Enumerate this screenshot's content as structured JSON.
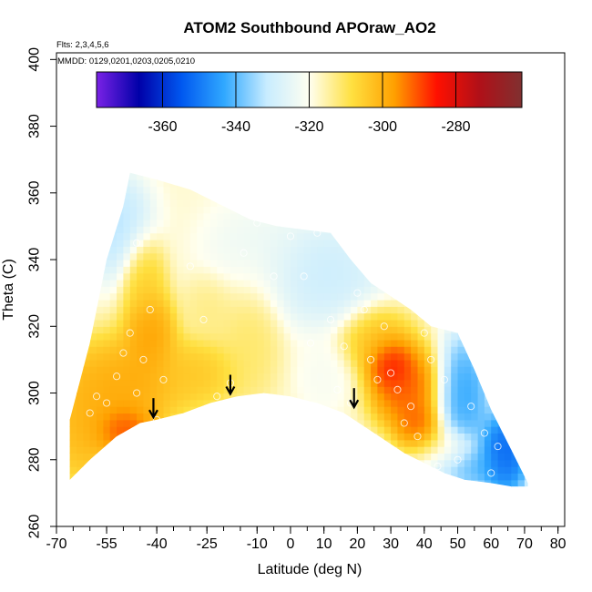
{
  "title": "ATOM2 Southbound APOraw_AO2",
  "flights_note": "Flts: 2,3,4,5,6",
  "dates_note": "MMDD: 0129,0201,0203,0205,0210",
  "chart_data": {
    "type": "heatmap",
    "title": "ATOM2 Southbound APOraw_AO2",
    "xlabel": "Latitude (deg N)",
    "ylabel": "Theta (C)",
    "xlim": [
      -70,
      82
    ],
    "ylim": [
      260,
      402
    ],
    "x_ticks_major": [
      -70,
      -55,
      -40,
      -25,
      -10,
      0,
      10,
      20,
      30,
      40,
      50,
      60,
      70,
      80
    ],
    "x_ticks_labels": [
      "-70",
      "-55",
      "-40",
      "-25",
      "-10",
      "0",
      "10",
      "20",
      "30",
      "40",
      "50",
      "60",
      "70",
      "80"
    ],
    "y_ticks": [
      260,
      280,
      300,
      320,
      340,
      360,
      380,
      400
    ],
    "y_ticks_labels": [
      "260",
      "280",
      "300",
      "320",
      "340",
      "360",
      "380",
      "400"
    ],
    "colorbar": {
      "range": [
        -378,
        -262
      ],
      "ticks": [
        -360,
        -340,
        -320,
        -300,
        -280
      ],
      "tick_labels": [
        "-360",
        "-340",
        "-320",
        "-300",
        "-280"
      ],
      "colors": [
        "#7a22e6",
        "#0000a8",
        "#0058f0",
        "#30a8ff",
        "#c8ecff",
        "#fffff0",
        "#ffe040",
        "#ffa000",
        "#ff1000",
        "#b01018",
        "#803030"
      ]
    },
    "section_lower_boundary": [
      {
        "lat": -66,
        "theta": 274
      },
      {
        "lat": -60,
        "theta": 280
      },
      {
        "lat": -52,
        "theta": 287
      },
      {
        "lat": -45,
        "theta": 291
      },
      {
        "lat": -40,
        "theta": 292
      },
      {
        "lat": -32,
        "theta": 294
      },
      {
        "lat": -24,
        "theta": 297
      },
      {
        "lat": -16,
        "theta": 299
      },
      {
        "lat": -8,
        "theta": 300
      },
      {
        "lat": 0,
        "theta": 299
      },
      {
        "lat": 8,
        "theta": 297
      },
      {
        "lat": 16,
        "theta": 294
      },
      {
        "lat": 22,
        "theta": 290
      },
      {
        "lat": 28,
        "theta": 286
      },
      {
        "lat": 34,
        "theta": 282
      },
      {
        "lat": 40,
        "theta": 279
      },
      {
        "lat": 46,
        "theta": 276
      },
      {
        "lat": 52,
        "theta": 274
      },
      {
        "lat": 60,
        "theta": 273
      },
      {
        "lat": 66,
        "theta": 272
      },
      {
        "lat": 71,
        "theta": 272
      }
    ],
    "section_upper_boundary": [
      {
        "lat": -66,
        "theta": 274
      },
      {
        "lat": -66,
        "theta": 292
      },
      {
        "lat": -60,
        "theta": 315
      },
      {
        "lat": -55,
        "theta": 340
      },
      {
        "lat": -50,
        "theta": 356
      },
      {
        "lat": -48,
        "theta": 366
      },
      {
        "lat": -40,
        "theta": 364
      },
      {
        "lat": -30,
        "theta": 361
      },
      {
        "lat": -20,
        "theta": 356
      },
      {
        "lat": -12,
        "theta": 352
      },
      {
        "lat": -4,
        "theta": 350
      },
      {
        "lat": 4,
        "theta": 349
      },
      {
        "lat": 12,
        "theta": 348
      },
      {
        "lat": 18,
        "theta": 340
      },
      {
        "lat": 24,
        "theta": 333
      },
      {
        "lat": 30,
        "theta": 329
      },
      {
        "lat": 36,
        "theta": 325
      },
      {
        "lat": 42,
        "theta": 320
      },
      {
        "lat": 50,
        "theta": 318
      },
      {
        "lat": 55,
        "theta": 307
      },
      {
        "lat": 60,
        "theta": 295
      },
      {
        "lat": 66,
        "theta": 283
      },
      {
        "lat": 71,
        "theta": 273
      },
      {
        "lat": 71,
        "theta": 272
      }
    ],
    "color_features": [
      {
        "lat": -50,
        "theta": 289,
        "value": -284,
        "spread_lat": 7,
        "spread_theta": 6
      },
      {
        "lat": -50,
        "theta": 302,
        "value": -295,
        "spread_lat": 14,
        "spread_theta": 12
      },
      {
        "lat": -62,
        "theta": 290,
        "value": -298,
        "spread_lat": 8,
        "spread_theta": 14
      },
      {
        "lat": -42,
        "theta": 318,
        "value": -294,
        "spread_lat": 6,
        "spread_theta": 10
      },
      {
        "lat": -44,
        "theta": 335,
        "value": -303,
        "spread_lat": 5,
        "spread_theta": 10
      },
      {
        "lat": -28,
        "theta": 306,
        "value": -302,
        "spread_lat": 10,
        "spread_theta": 8
      },
      {
        "lat": -12,
        "theta": 318,
        "value": -310,
        "spread_lat": 7,
        "spread_theta": 16
      },
      {
        "lat": -24,
        "theta": 326,
        "value": -312,
        "spread_lat": 6,
        "spread_theta": 8
      },
      {
        "lat": 30,
        "theta": 309,
        "value": -278,
        "spread_lat": 5,
        "spread_theta": 6
      },
      {
        "lat": 34,
        "theta": 302,
        "value": -286,
        "spread_lat": 8,
        "spread_theta": 10
      },
      {
        "lat": 38,
        "theta": 290,
        "value": -288,
        "spread_lat": 5,
        "spread_theta": 6
      },
      {
        "lat": 26,
        "theta": 316,
        "value": -300,
        "spread_lat": 8,
        "spread_theta": 8
      },
      {
        "lat": 44,
        "theta": 282,
        "value": -312,
        "spread_lat": 8,
        "spread_theta": 6
      },
      {
        "lat": 10,
        "theta": 305,
        "value": -322,
        "spread_lat": 6,
        "spread_theta": 8
      },
      {
        "lat": 64,
        "theta": 282,
        "value": -360,
        "spread_lat": 6,
        "spread_theta": 10
      },
      {
        "lat": 52,
        "theta": 300,
        "value": -348,
        "spread_lat": 6,
        "spread_theta": 14
      },
      {
        "lat": 52,
        "theta": 278,
        "value": -345,
        "spread_lat": 10,
        "spread_theta": 5
      },
      {
        "lat": -52,
        "theta": 350,
        "value": -336,
        "spread_lat": 8,
        "spread_theta": 12
      },
      {
        "lat": 10,
        "theta": 336,
        "value": -333,
        "spread_lat": 14,
        "spread_theta": 12
      },
      {
        "lat": -10,
        "theta": 342,
        "value": -325,
        "spread_lat": 12,
        "spread_theta": 12
      }
    ],
    "background_value": -318,
    "sample_points": [
      {
        "lat": -60,
        "theta": 294
      },
      {
        "lat": -58,
        "theta": 299
      },
      {
        "lat": -55,
        "theta": 297
      },
      {
        "lat": -52,
        "theta": 305
      },
      {
        "lat": -50,
        "theta": 312
      },
      {
        "lat": -48,
        "theta": 318
      },
      {
        "lat": -44,
        "theta": 310
      },
      {
        "lat": -42,
        "theta": 325
      },
      {
        "lat": -46,
        "theta": 345
      },
      {
        "lat": -38,
        "theta": 304
      },
      {
        "lat": -35,
        "theta": 292
      },
      {
        "lat": -30,
        "theta": 338
      },
      {
        "lat": -26,
        "theta": 322
      },
      {
        "lat": -22,
        "theta": 299
      },
      {
        "lat": -18,
        "theta": 303
      },
      {
        "lat": -14,
        "theta": 342
      },
      {
        "lat": -10,
        "theta": 351
      },
      {
        "lat": -5,
        "theta": 335
      },
      {
        "lat": 0,
        "theta": 347
      },
      {
        "lat": 4,
        "theta": 335
      },
      {
        "lat": 8,
        "theta": 348
      },
      {
        "lat": 6,
        "theta": 315
      },
      {
        "lat": 12,
        "theta": 322
      },
      {
        "lat": 14,
        "theta": 301
      },
      {
        "lat": 16,
        "theta": 314
      },
      {
        "lat": 18,
        "theta": 297
      },
      {
        "lat": 20,
        "theta": 330
      },
      {
        "lat": 22,
        "theta": 325
      },
      {
        "lat": 24,
        "theta": 310
      },
      {
        "lat": 26,
        "theta": 304
      },
      {
        "lat": 28,
        "theta": 320
      },
      {
        "lat": 30,
        "theta": 306
      },
      {
        "lat": 32,
        "theta": 301
      },
      {
        "lat": 34,
        "theta": 291
      },
      {
        "lat": 36,
        "theta": 296
      },
      {
        "lat": 38,
        "theta": 287
      },
      {
        "lat": 40,
        "theta": 318
      },
      {
        "lat": 42,
        "theta": 310
      },
      {
        "lat": 44,
        "theta": 278
      },
      {
        "lat": 46,
        "theta": 304
      },
      {
        "lat": 50,
        "theta": 280
      },
      {
        "lat": 54,
        "theta": 296
      },
      {
        "lat": 56,
        "theta": 310
      },
      {
        "lat": 58,
        "theta": 288
      },
      {
        "lat": 60,
        "theta": 276
      },
      {
        "lat": 62,
        "theta": 284
      },
      {
        "lat": -40,
        "theta": 292
      },
      {
        "lat": -46,
        "theta": 300
      }
    ],
    "tropopause_arrows": [
      {
        "lat": -41,
        "theta": 293
      },
      {
        "lat": -18,
        "theta": 300
      },
      {
        "lat": 19,
        "theta": 296
      }
    ]
  }
}
